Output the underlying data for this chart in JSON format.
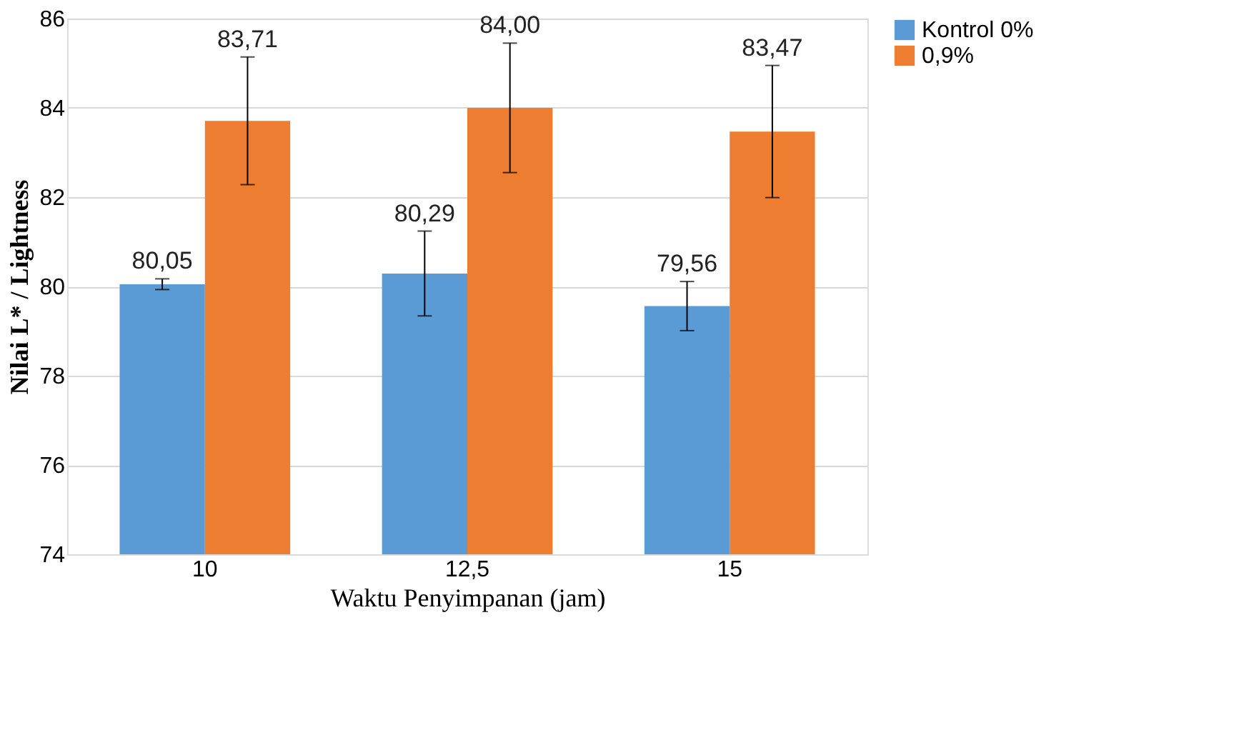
{
  "chart_data": {
    "type": "bar",
    "xlabel": "Waktu Penyimpanan (jam)",
    "ylabel": "Nilai L* / Lightness",
    "categories": [
      "10",
      "12,5",
      "15"
    ],
    "series": [
      {
        "name": "Kontrol 0%",
        "color": "#5b9bd5",
        "values": [
          80.05,
          80.29,
          79.56
        ],
        "errors": [
          0.12,
          0.95,
          0.55
        ],
        "value_labels": [
          "80,05",
          "80,29",
          "79,56"
        ]
      },
      {
        "name": "0,9%",
        "color": "#ed7d31",
        "values": [
          83.71,
          84.0,
          83.47
        ],
        "errors": [
          1.43,
          1.45,
          1.48
        ],
        "value_labels": [
          "83,71",
          "84,00",
          "83,47"
        ]
      }
    ],
    "ylim": [
      74,
      86
    ],
    "yticks": [
      74,
      76,
      78,
      80,
      82,
      84,
      86
    ],
    "grid": "y",
    "legend": "right"
  }
}
